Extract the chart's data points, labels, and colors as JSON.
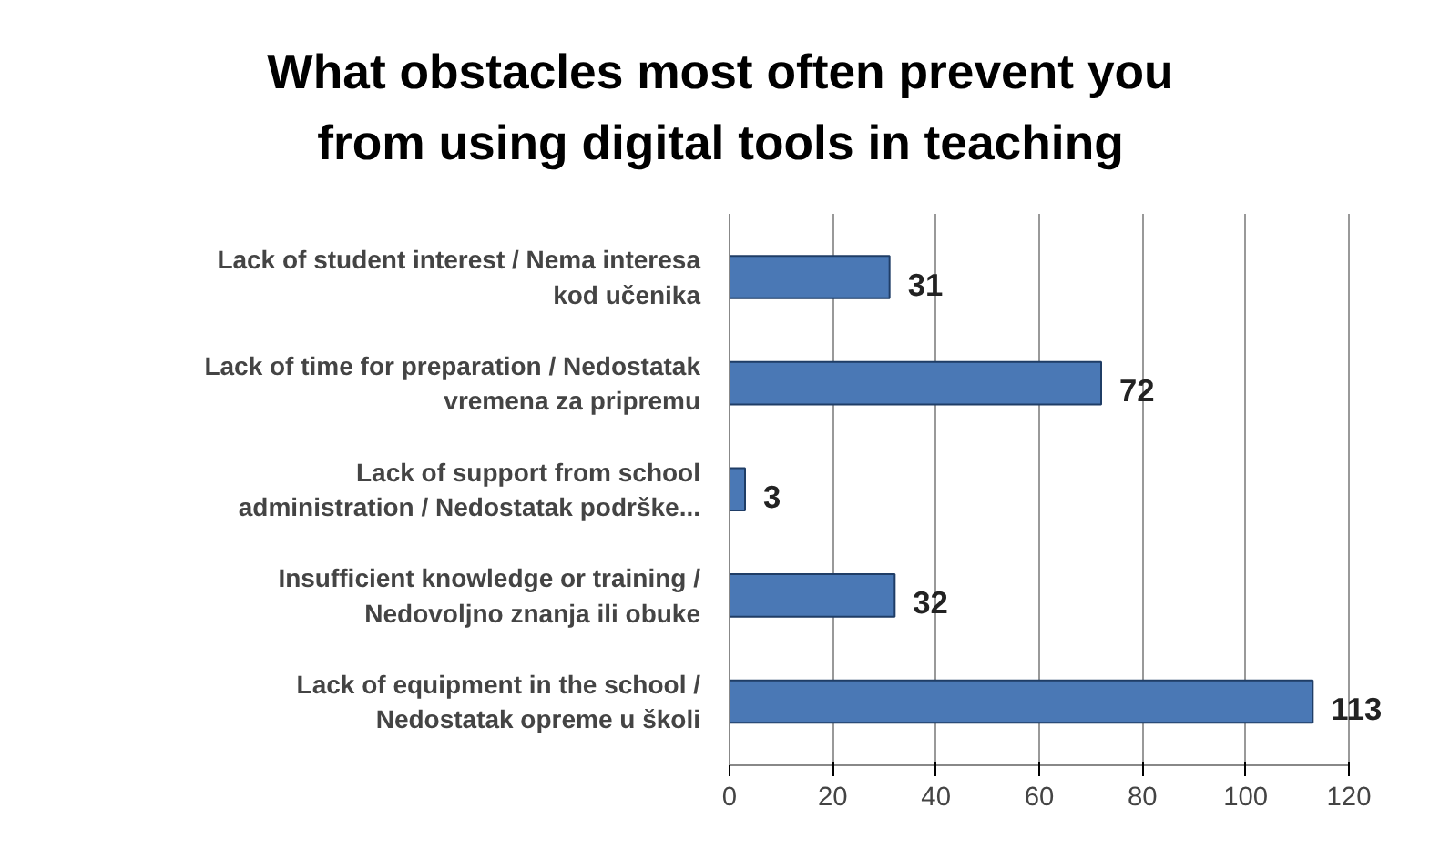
{
  "chart_data": {
    "type": "bar",
    "orientation": "horizontal",
    "title": "What obstacles most often prevent you\nfrom using digital tools in teaching",
    "categories": [
      "Lack of student interest / Nema interesa\nkod učenika",
      "Lack of time for preparation / Nedostatak\nvremena za pripremu",
      "Lack of support from school\nadministration / Nedostatak podrške...",
      "Insufficient knowledge or training /\nNedovoljno znanja ili obuke",
      "Lack of equipment in the school /\nNedostatak opreme u školi"
    ],
    "values": [
      31,
      72,
      3,
      32,
      113
    ],
    "color": "#4a78b5",
    "xlim": [
      0,
      120
    ],
    "xticks": [
      0,
      20,
      40,
      60,
      80,
      100,
      120
    ],
    "grid": "x",
    "data_labels": true
  }
}
